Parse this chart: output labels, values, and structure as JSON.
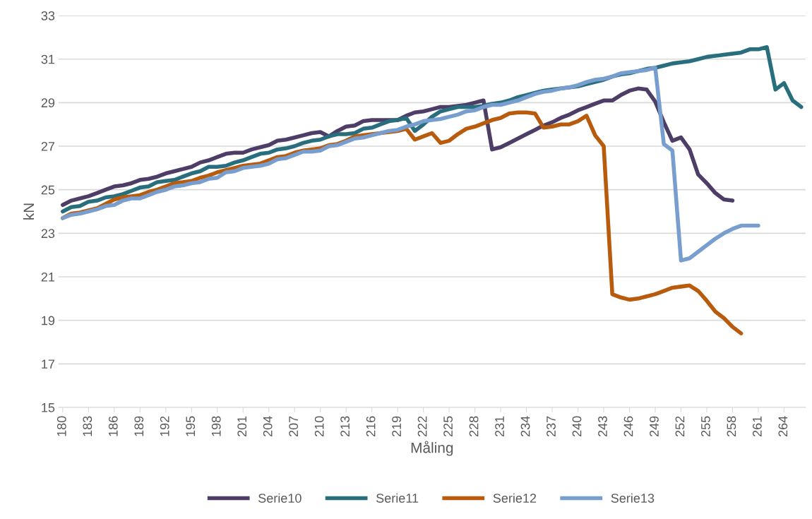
{
  "chart_data": {
    "type": "line",
    "xlabel": "Måling",
    "ylabel": "kN",
    "categories": [
      "180",
      null,
      null,
      "183",
      null,
      null,
      "186",
      null,
      null,
      "189",
      null,
      null,
      "192",
      null,
      null,
      "195",
      null,
      null,
      "198",
      null,
      null,
      "201",
      null,
      null,
      "204",
      null,
      null,
      "207",
      null,
      null,
      "210",
      null,
      null,
      "213",
      null,
      null,
      "216",
      null,
      null,
      "219",
      null,
      null,
      "222",
      null,
      null,
      "225",
      null,
      null,
      "228",
      null,
      null,
      "231",
      null,
      null,
      "234",
      null,
      null,
      "237",
      null,
      null,
      "240",
      null,
      null,
      "243",
      null,
      null,
      "246",
      null,
      null,
      "249",
      null,
      null,
      "252",
      null,
      null,
      "255",
      null,
      null,
      "258",
      null,
      null,
      "261",
      null,
      null,
      "264",
      null,
      null
    ],
    "ylim": [
      15,
      33
    ],
    "yticks": [
      15,
      17,
      19,
      21,
      23,
      25,
      27,
      29,
      31,
      33
    ],
    "grid": "y",
    "legend": "bottom",
    "marker": "none",
    "line_style": "solid",
    "series": [
      {
        "name": "Serie10",
        "color": "#4e3d66",
        "values": [
          24.3,
          24.5,
          24.6,
          24.7,
          24.85,
          25.0,
          25.15,
          25.2,
          25.3,
          25.45,
          25.5,
          25.6,
          25.75,
          25.85,
          25.95,
          26.05,
          26.25,
          26.35,
          26.5,
          26.65,
          26.7,
          26.7,
          26.85,
          26.95,
          27.05,
          27.25,
          27.3,
          27.4,
          27.5,
          27.6,
          27.65,
          27.45,
          27.7,
          27.9,
          27.95,
          28.15,
          28.2,
          28.2,
          28.2,
          28.2,
          28.4,
          28.55,
          28.6,
          28.7,
          28.8,
          28.8,
          28.85,
          28.9,
          29.0,
          29.1,
          26.85,
          26.95,
          27.15,
          27.35,
          27.55,
          27.75,
          27.95,
          28.1,
          28.3,
          28.45,
          28.65,
          28.8,
          28.95,
          29.1,
          29.1,
          29.35,
          29.55,
          29.65,
          29.6,
          29.05,
          28.1,
          27.25,
          27.4,
          26.85,
          25.7,
          25.3,
          24.85,
          24.55,
          24.5,
          null,
          null,
          null,
          null,
          null,
          null,
          null,
          null
        ]
      },
      {
        "name": "Serie11",
        "color": "#296e7d",
        "values": [
          24.0,
          24.2,
          24.25,
          24.45,
          24.5,
          24.65,
          24.7,
          24.8,
          24.95,
          25.1,
          25.15,
          25.35,
          25.4,
          25.45,
          25.6,
          25.75,
          25.85,
          26.05,
          26.05,
          26.1,
          26.25,
          26.35,
          26.5,
          26.65,
          26.7,
          26.85,
          26.9,
          27.0,
          27.15,
          27.25,
          27.3,
          27.45,
          27.55,
          27.55,
          27.6,
          27.8,
          27.85,
          28.0,
          28.15,
          28.2,
          28.3,
          27.7,
          28.0,
          28.35,
          28.6,
          28.7,
          28.8,
          28.8,
          28.8,
          28.85,
          28.95,
          29.0,
          29.1,
          29.25,
          29.35,
          29.45,
          29.55,
          29.6,
          29.65,
          29.7,
          29.75,
          29.85,
          29.95,
          30.05,
          30.2,
          30.3,
          30.35,
          30.45,
          30.55,
          30.6,
          30.7,
          30.8,
          30.85,
          30.9,
          31.0,
          31.1,
          31.15,
          31.2,
          31.25,
          31.3,
          31.45,
          31.45,
          31.55,
          29.6,
          29.9,
          29.1,
          28.8
        ]
      },
      {
        "name": "Serie12",
        "color": "#b85b0c",
        "values": [
          23.7,
          23.9,
          23.95,
          24.05,
          24.15,
          24.35,
          24.55,
          24.65,
          24.7,
          24.75,
          24.9,
          25.0,
          25.15,
          25.3,
          25.35,
          25.4,
          25.55,
          25.65,
          25.8,
          25.9,
          26.0,
          26.1,
          26.15,
          26.2,
          26.35,
          26.5,
          26.55,
          26.7,
          26.8,
          26.85,
          26.9,
          27.05,
          27.1,
          27.25,
          27.45,
          27.5,
          27.55,
          27.6,
          27.65,
          27.7,
          27.8,
          27.3,
          27.45,
          27.6,
          27.15,
          27.25,
          27.55,
          27.8,
          27.9,
          28.05,
          28.2,
          28.3,
          28.5,
          28.55,
          28.55,
          28.5,
          27.85,
          27.9,
          28.0,
          28.0,
          28.15,
          28.4,
          27.5,
          27.0,
          20.2,
          20.05,
          19.95,
          20.0,
          20.1,
          20.2,
          20.35,
          20.5,
          20.55,
          20.6,
          20.35,
          19.9,
          19.4,
          19.1,
          18.7,
          18.4,
          null,
          null,
          null,
          null,
          null,
          null,
          null
        ]
      },
      {
        "name": "Serie13",
        "color": "#779ecf",
        "values": [
          23.7,
          23.85,
          23.9,
          24.0,
          24.1,
          24.25,
          24.3,
          24.5,
          24.6,
          24.6,
          24.75,
          24.9,
          25.0,
          25.15,
          25.2,
          25.3,
          25.35,
          25.5,
          25.55,
          25.8,
          25.85,
          26.0,
          26.05,
          26.1,
          26.2,
          26.4,
          26.45,
          26.6,
          26.75,
          26.75,
          26.8,
          27.0,
          27.05,
          27.2,
          27.35,
          27.4,
          27.5,
          27.6,
          27.7,
          27.75,
          27.9,
          28.0,
          28.15,
          28.2,
          28.25,
          28.35,
          28.45,
          28.6,
          28.65,
          28.8,
          28.9,
          28.9,
          29.0,
          29.1,
          29.25,
          29.4,
          29.5,
          29.55,
          29.65,
          29.7,
          29.8,
          29.95,
          30.05,
          30.1,
          30.2,
          30.35,
          30.4,
          30.45,
          30.5,
          30.6,
          27.1,
          26.8,
          21.75,
          21.85,
          22.15,
          22.45,
          22.75,
          23.0,
          23.2,
          23.35,
          23.35,
          23.35,
          null,
          null,
          null,
          null,
          null
        ]
      }
    ]
  }
}
